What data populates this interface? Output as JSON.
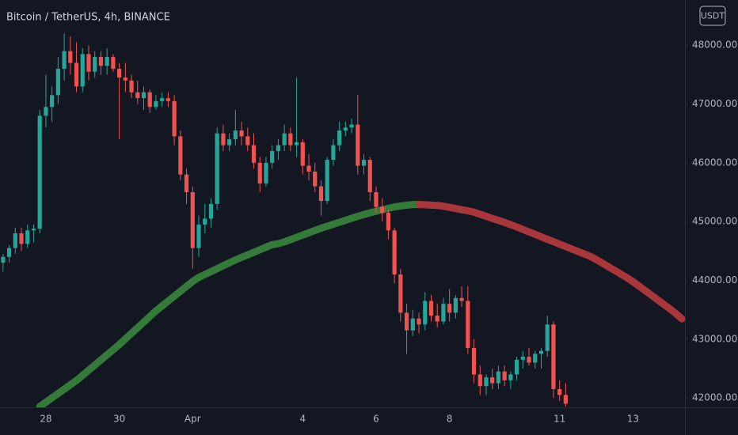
{
  "chart_data": {
    "type": "candlestick",
    "title": "Bitcoin / TetherUS, 4h, BINANCE",
    "currency": "USDT",
    "up_color": "#26a69a",
    "down_color": "#ef5350",
    "categories": [
      null,
      null,
      null,
      null,
      null,
      null,
      null,
      "28",
      null,
      null,
      null,
      null,
      null,
      null,
      null,
      null,
      null,
      null,
      null,
      "30",
      null,
      null,
      null,
      null,
      null,
      null,
      null,
      null,
      null,
      null,
      null,
      "Apr",
      null,
      null,
      null,
      null,
      null,
      null,
      null,
      null,
      null,
      null,
      null,
      null,
      null,
      null,
      null,
      null,
      null,
      "4",
      null,
      null,
      null,
      null,
      null,
      null,
      null,
      null,
      null,
      null,
      null,
      "6",
      null,
      null,
      null,
      null,
      null,
      null,
      null,
      null,
      null,
      null,
      null,
      "8",
      null,
      null,
      null,
      null,
      null,
      null,
      null,
      null,
      null,
      null,
      null,
      null,
      null,
      null,
      null,
      null,
      null,
      "11",
      null,
      null,
      null,
      null,
      null,
      null,
      null,
      null,
      null,
      null,
      null,
      "13",
      null,
      null,
      null,
      null,
      null,
      null,
      null,
      null
    ],
    "open": [
      44300,
      44400,
      44550,
      44800,
      44620,
      44850,
      44880,
      46800,
      46950,
      47150,
      47600,
      47900,
      47700,
      47300,
      47850,
      47550,
      47800,
      47650,
      47800,
      47600,
      47450,
      47400,
      47200,
      47100,
      47200,
      46950,
      47050,
      47100,
      47050,
      46450,
      45800,
      45500,
      44550,
      44950,
      45050,
      45300,
      46500,
      46300,
      46400,
      46550,
      46450,
      46300,
      46000,
      45650,
      46000,
      46200,
      46300,
      46500,
      46300,
      46350,
      45950,
      45850,
      45600,
      45350,
      46050,
      46300,
      46550,
      46600,
      46650,
      45950,
      46050,
      45500,
      45250,
      45150,
      44850,
      44100,
      43450,
      43150,
      43350,
      43250,
      43650,
      43400,
      43300,
      43600,
      43450,
      43700,
      43650,
      42850,
      42400,
      42200,
      42350,
      42250,
      42450,
      42300,
      42400,
      42650,
      42700,
      42600,
      42750,
      42800,
      43250,
      42150,
      42050,
      null,
      null,
      null,
      null,
      null,
      null,
      null,
      null,
      null,
      null,
      null,
      null,
      null,
      null,
      null,
      null,
      null,
      null,
      null
    ],
    "high": [
      44450,
      44600,
      44900,
      44900,
      44950,
      44950,
      46900,
      47500,
      47300,
      47800,
      48200,
      48150,
      48050,
      47950,
      48000,
      47900,
      47900,
      47950,
      47850,
      47700,
      47700,
      47500,
      47400,
      47300,
      47250,
      47150,
      47200,
      47200,
      47150,
      46550,
      45900,
      45600,
      45100,
      45300,
      45400,
      46600,
      46650,
      46500,
      46900,
      46700,
      46600,
      46500,
      46100,
      46100,
      46300,
      46400,
      46650,
      46600,
      47450,
      46400,
      46150,
      46000,
      45700,
      46100,
      46400,
      46700,
      46700,
      46750,
      47150,
      46150,
      46100,
      45600,
      45400,
      45200,
      44900,
      44200,
      43600,
      43500,
      43450,
      43800,
      43750,
      43600,
      43700,
      43850,
      43750,
      43900,
      43900,
      43000,
      42550,
      42400,
      42500,
      42550,
      42550,
      42450,
      42700,
      42800,
      42850,
      42800,
      42850,
      43400,
      43300,
      42300,
      42250,
      null,
      null,
      null,
      null,
      null,
      null,
      null,
      null,
      null,
      null,
      null,
      null,
      null,
      null,
      null,
      null,
      null,
      null,
      null
    ],
    "low": [
      44150,
      44300,
      44450,
      44500,
      44550,
      44650,
      44800,
      46600,
      46700,
      47000,
      47400,
      47500,
      47200,
      47200,
      47400,
      47450,
      47500,
      47500,
      47550,
      46400,
      47200,
      47100,
      47000,
      46900,
      46850,
      46900,
      46950,
      46950,
      46300,
      45700,
      45300,
      44200,
      44400,
      44800,
      44900,
      45200,
      46200,
      46200,
      46300,
      46300,
      46200,
      45900,
      45500,
      45600,
      45900,
      46050,
      46200,
      46200,
      46100,
      45800,
      45700,
      45500,
      45100,
      45300,
      45950,
      46200,
      46450,
      46500,
      45800,
      45800,
      45350,
      45150,
      45000,
      44700,
      43950,
      43300,
      42750,
      43050,
      43100,
      43150,
      43300,
      43200,
      43250,
      43300,
      43350,
      43550,
      42750,
      42250,
      42050,
      42050,
      42150,
      42150,
      42200,
      42150,
      42300,
      42500,
      42550,
      42500,
      42500,
      42700,
      42000,
      41950,
      41850,
      null,
      null,
      null,
      null,
      null,
      null,
      null,
      null,
      null,
      null,
      null,
      null,
      null,
      null,
      null,
      null,
      null,
      null,
      null
    ],
    "close": [
      44400,
      44550,
      44800,
      44620,
      44850,
      44880,
      46800,
      46950,
      47150,
      47600,
      47900,
      47700,
      47300,
      47850,
      47550,
      47800,
      47650,
      47800,
      47600,
      47450,
      47400,
      47200,
      47100,
      47200,
      46950,
      47050,
      47100,
      47050,
      46450,
      45800,
      45500,
      44550,
      44950,
      45050,
      45300,
      46500,
      46300,
      46400,
      46550,
      46450,
      46300,
      46000,
      45650,
      46000,
      46200,
      46300,
      46500,
      46300,
      46350,
      45950,
      45850,
      45600,
      45350,
      46050,
      46300,
      46550,
      46600,
      46650,
      45950,
      46050,
      45500,
      45250,
      45150,
      44850,
      44100,
      43450,
      43150,
      43350,
      43250,
      43650,
      43400,
      43300,
      43600,
      43450,
      43700,
      43650,
      42850,
      42400,
      42200,
      42350,
      42250,
      42450,
      42300,
      42400,
      42650,
      42700,
      42600,
      42750,
      42800,
      43250,
      42150,
      42050,
      41900,
      null,
      null,
      null,
      null,
      null,
      null,
      null,
      null,
      null,
      null,
      null,
      null,
      null,
      null,
      null,
      null,
      null,
      null,
      null
    ],
    "ma": {
      "color_up": "#347a38",
      "color_down": "#a8363a",
      "values": [
        null,
        null,
        null,
        null,
        null,
        null,
        41853,
        41927,
        42001,
        42075,
        42149,
        42223,
        42296,
        42383,
        42471,
        42558,
        42646,
        42733,
        42820,
        42908,
        43003,
        43099,
        43194,
        43290,
        43385,
        43481,
        43564,
        43648,
        43731,
        43814,
        43898,
        43981,
        44050,
        44100,
        44149,
        44199,
        44249,
        44299,
        44348,
        44391,
        44434,
        44477,
        44521,
        44564,
        44607,
        44625,
        44654,
        44693,
        44732,
        44771,
        44810,
        44849,
        44888,
        44921,
        44955,
        44989,
        45022,
        45056,
        45090,
        45120,
        45150,
        45175,
        45200,
        45225,
        45250,
        45265,
        45279,
        45290,
        45290,
        45286,
        45280,
        45275,
        45262,
        45242,
        45223,
        45202,
        45183,
        45160,
        45124,
        45090,
        45055,
        45020,
        44985,
        44948,
        44909,
        44866,
        44825,
        44783,
        44741,
        44699,
        44659,
        44617,
        44576,
        44534,
        44492,
        44451,
        44409,
        44355,
        44293,
        44231,
        44169,
        44108,
        44046,
        43978,
        43902,
        43825,
        43749,
        43672,
        43595,
        43518,
        43436,
        43345
      ]
    },
    "ylim": [
      41840,
      48770
    ],
    "yticks": [
      {
        "value": 42000,
        "label": "42000.00"
      },
      {
        "value": 43000,
        "label": "43000.00"
      },
      {
        "value": 44000,
        "label": "44000.00"
      },
      {
        "value": 45000,
        "label": "45000.00"
      },
      {
        "value": 46000,
        "label": "46000.00"
      },
      {
        "value": 47000,
        "label": "47000.00"
      },
      {
        "value": 48000,
        "label": "48000.00"
      }
    ]
  }
}
